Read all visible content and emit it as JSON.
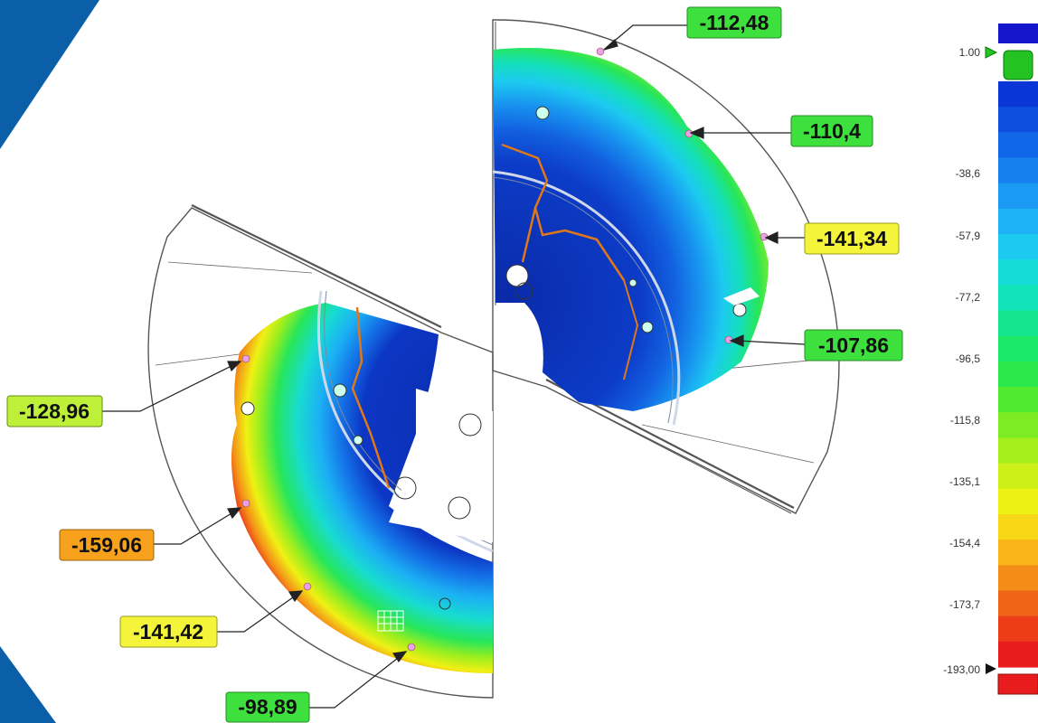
{
  "colors": {
    "brand_band": "#0a5fa8",
    "callout_green": "#3ee03e",
    "callout_yellow": "#f4f43a",
    "callout_orange": "#f7a11c",
    "outline": "#444444",
    "crack": "#e07818"
  },
  "callouts": {
    "c1": "-112,48",
    "c2": "-110,4",
    "c3": "-141,34",
    "c4": "-107,86",
    "c5": "-128,96",
    "c6": "-159,06",
    "c7": "-141,42",
    "c8": "-98,89"
  },
  "scale": {
    "top_value": "1.00",
    "bottom_value": "-193,00",
    "ticks": [
      "-38,6",
      "-57,9",
      "-77,2",
      "-96,5",
      "-115,8",
      "-135,1",
      "-154,4",
      "-173,7"
    ],
    "colors": [
      "#0b36d6",
      "#0f4fe0",
      "#1267e8",
      "#1580ee",
      "#1a9af2",
      "#1cb2f4",
      "#1ccaef",
      "#16dcd8",
      "#12e2b8",
      "#14e690",
      "#1ce86a",
      "#2ce84a",
      "#52ea30",
      "#7eec22",
      "#a6ee1c",
      "#ccf018",
      "#eef214",
      "#f8d816",
      "#f8b418",
      "#f48c18",
      "#f06418",
      "#ec3c18",
      "#e81c1c"
    ]
  }
}
